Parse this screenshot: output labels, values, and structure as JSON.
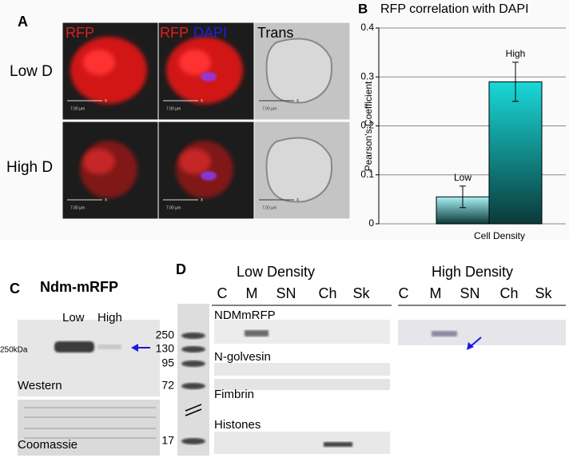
{
  "panel_a": {
    "label": "A",
    "channel_labels": [
      "RFP",
      "RFP",
      "DAPI",
      "Trans"
    ],
    "row_labels": [
      "Low D",
      "High D"
    ],
    "scale_bar": "7.00 µm",
    "scale_mark": "x"
  },
  "chart_data": {
    "type": "bar",
    "panel_label": "B",
    "title": "RFP correlation with DAPI",
    "y_label": "Pearson's Coefficient",
    "x_label": "Cell Density",
    "categories": [
      "Low",
      "High"
    ],
    "values": [
      0.055,
      0.29
    ],
    "errors": [
      0.022,
      0.04
    ],
    "colors": [
      "#a8f2f4",
      "#1ad8d8"
    ],
    "ylim": [
      0,
      0.4
    ],
    "yticks": [
      0,
      0.1,
      0.2,
      0.3,
      0.4
    ],
    "grid": true
  },
  "panel_c": {
    "label": "C",
    "title": "Ndm-mRFP",
    "lanes": [
      "Low",
      "High"
    ],
    "marker": "250kDa",
    "blots": [
      "Western",
      "Coomassie"
    ]
  },
  "panel_d": {
    "label": "D",
    "groups": [
      "Low Density",
      "High Density"
    ],
    "lanes": [
      "C",
      "M",
      "SN",
      "Ch",
      "Sk"
    ],
    "ladder": [
      "250",
      "130",
      "95",
      "72",
      "17"
    ],
    "proteins": [
      "NDMmRFP",
      "N-golvesin",
      "Fimbrin",
      "Histones"
    ]
  }
}
